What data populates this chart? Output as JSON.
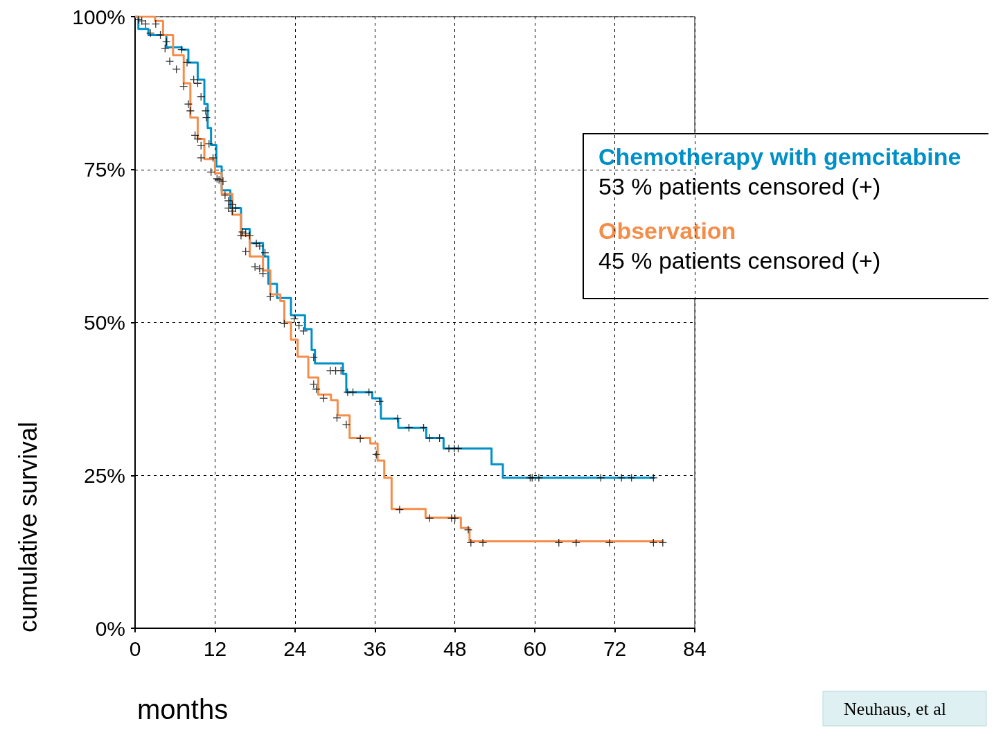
{
  "chart_data": {
    "type": "step",
    "xlabel": "months",
    "ylabel": "cumulative survival",
    "xlim": [
      0,
      84
    ],
    "xticks": [
      0,
      12,
      24,
      36,
      48,
      60,
      72,
      84
    ],
    "ylim": [
      0,
      100
    ],
    "yticks": [
      {
        "value": 0,
        "label": "0%"
      },
      {
        "value": 25,
        "label": "25%"
      },
      {
        "value": 50,
        "label": "50%"
      },
      {
        "value": 75,
        "label": "75%"
      },
      {
        "value": 100,
        "label": "100%"
      }
    ],
    "grid": true,
    "legend": "top right",
    "line_style": "solid",
    "series": [
      {
        "name": "Chemotherapy with gemcitabine",
        "color": "#0090c8",
        "x": [
          0,
          0.5,
          2,
          4.7,
          7,
          8,
          9.4,
          10.4,
          10.9,
          11.4,
          12.2,
          13,
          14.3,
          15.9,
          17.2,
          19.2,
          20,
          21.3,
          23.4,
          25.5,
          26.5,
          27,
          31.2,
          31.7,
          35.6,
          36.9,
          39.5,
          43.7,
          46.3,
          53.5,
          55.2,
          78
        ],
        "values": [
          100,
          98,
          97,
          95,
          94.6,
          92.5,
          89.7,
          85.7,
          81.8,
          79,
          75.5,
          71.6,
          68.7,
          65.3,
          63,
          60.8,
          56.3,
          54,
          51.2,
          48.9,
          45.5,
          43.3,
          41.6,
          38.6,
          37.6,
          34.3,
          32.8,
          31.1,
          29.4,
          26.8,
          24.6,
          24.6
        ]
      },
      {
        "name": "Observation",
        "color": "#f58d4a",
        "x": [
          0,
          3,
          4.2,
          5.7,
          7.3,
          8.3,
          9.4,
          10.4,
          12,
          13,
          14.6,
          15.9,
          17.2,
          19.2,
          20.3,
          21.8,
          22.4,
          23.4,
          24.4,
          26,
          27.5,
          29.4,
          30.4,
          32.2,
          35.3,
          36.4,
          37.4,
          38.5,
          43.6,
          48.9,
          50.2,
          79.3
        ],
        "values": [
          100,
          99.3,
          97,
          93.7,
          89.1,
          83.5,
          80,
          76.7,
          74.4,
          71,
          67.6,
          64.2,
          60.8,
          58.5,
          54.6,
          53.5,
          50,
          47.2,
          44.4,
          41,
          38.2,
          37.3,
          34.8,
          31.1,
          30.2,
          27.4,
          24.6,
          19.5,
          18.1,
          16.4,
          14.2,
          14.2
        ]
      },
      {
        "type": "scatter",
        "marker": "cross",
        "color": "#000000",
        "x": [
          0.5,
          1,
          1.6,
          2.3,
          3.8,
          4.7,
          7,
          7.8,
          8.8,
          9.4,
          9.9,
          10.6,
          10.7,
          11.1,
          11.7,
          12.6,
          13.2,
          14,
          14.6,
          15.1,
          16.1,
          16.6,
          17.2,
          18.2,
          18.7,
          19.5,
          23.9,
          24.6,
          25.3,
          26.8,
          29.3,
          30.1,
          30.9,
          31.9,
          32.7,
          35.1,
          36.7,
          39.4,
          41.1,
          43.3,
          44.2,
          45.7,
          47.1,
          47.9,
          48.5,
          59.3,
          59.6,
          60.6,
          69.9,
          73,
          74.5,
          77.8
        ],
        "values": [
          99.5,
          99.3,
          98.8,
          97.3,
          97,
          95.9,
          94.6,
          92.5,
          89.7,
          89.1,
          86.9,
          84.6,
          83.5,
          79.2,
          76.9,
          73.3,
          73.1,
          69.9,
          69.3,
          68.7,
          64.8,
          64.6,
          64.2,
          62.9,
          62.5,
          61.4,
          50.6,
          49.5,
          48.6,
          44.3,
          42.1,
          42.1,
          42.1,
          38.6,
          38.6,
          38.6,
          37.1,
          34.3,
          32.8,
          32.8,
          31.1,
          31.1,
          29.4,
          29.4,
          29.4,
          24.6,
          24.6,
          24.6,
          24.6,
          24.6,
          24.6,
          24.6
        ]
      },
      {
        "type": "scatter",
        "marker": "cross",
        "color": "#000000",
        "x": [
          3.1,
          4.5,
          5.2,
          6.2,
          7.3,
          8,
          8.3,
          9,
          9.4,
          9.9,
          9.9,
          11.4,
          12.3,
          13.5,
          14,
          14.6,
          15.9,
          16.6,
          18,
          18.7,
          19.2,
          20.3,
          22.4,
          26.8,
          27.2,
          28.3,
          30.3,
          31.7,
          33.8,
          36.2,
          39.7,
          44.2,
          47.5,
          48,
          50,
          50.4,
          52.2,
          63.6,
          66.2,
          71.2,
          77.8,
          79.2
        ],
        "values": [
          98.8,
          94.8,
          92.7,
          91.4,
          88.6,
          85.7,
          84.6,
          80.6,
          80,
          78.9,
          76.9,
          74.6,
          73.5,
          70.8,
          68.7,
          68.2,
          64.2,
          61.6,
          59.1,
          58.8,
          58,
          54.2,
          49.8,
          39.9,
          39.1,
          37.6,
          34.4,
          33.3,
          31,
          28.4,
          19.4,
          18,
          18,
          18,
          16.1,
          14,
          14,
          14,
          14,
          14,
          14,
          14
        ]
      }
    ],
    "annotations": [
      "53 % patients censored (+)",
      "45 % patients censored (+)",
      "Neuhaus, et al"
    ]
  }
}
